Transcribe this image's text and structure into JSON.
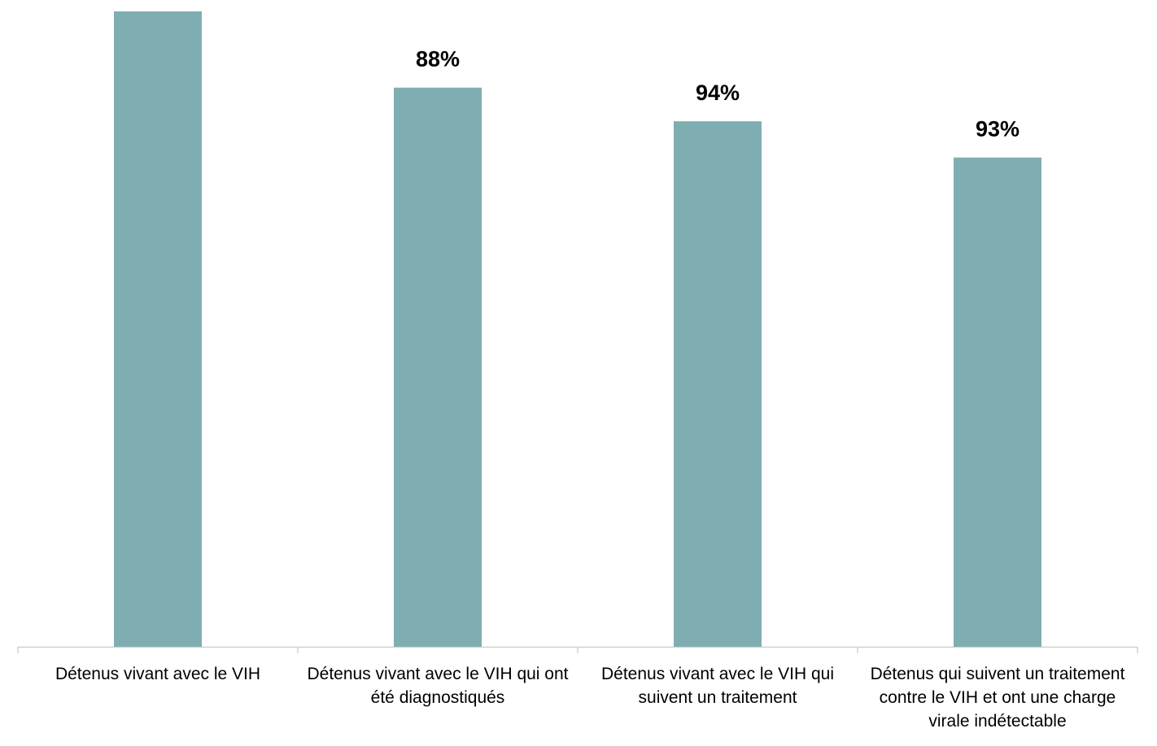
{
  "chart_data": {
    "type": "bar",
    "categories": [
      "Détenus vivant avec le VIH",
      "Détenus vivant avec le VIH qui ont été diagnostiqués",
      "Détenus vivant avec le VIH qui suivent un traitement",
      "Détenus qui suivent un traitement contre le VIH et ont une charge virale indétectable"
    ],
    "values": [
      100,
      88,
      82.7,
      77
    ],
    "rates": [
      null,
      88,
      94,
      93
    ],
    "rate_labels": [
      null,
      "88%",
      "94%",
      "93%"
    ],
    "color": "#7faeb2",
    "ylim": [
      0,
      100
    ]
  }
}
